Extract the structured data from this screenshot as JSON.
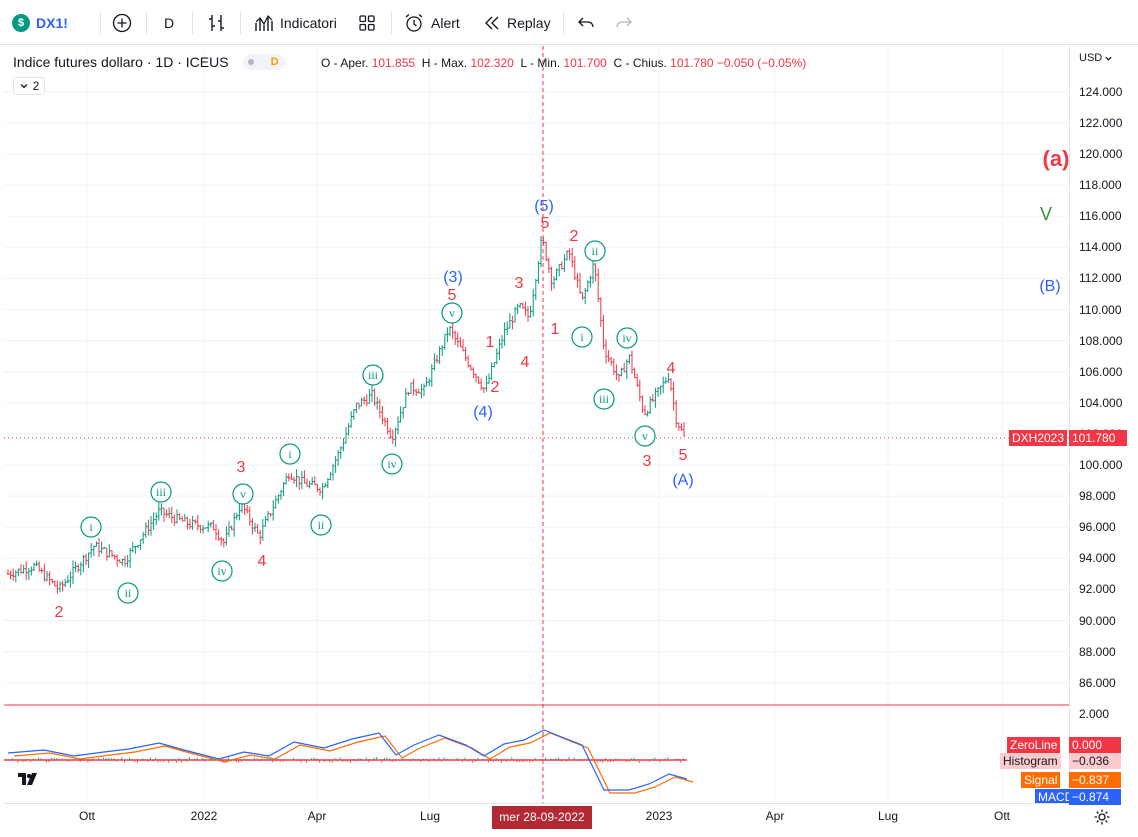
{
  "toolbar": {
    "symbol": "DX1!",
    "symbol_badge": "$",
    "interval": "D",
    "indicators_label": "Indicatori",
    "alert_label": "Alert",
    "replay_label": "Replay"
  },
  "legend": {
    "title": "Indice futures dollaro · 1D · ICEUS",
    "source_badge": "D",
    "o_label": "O - Aper.",
    "o_value": "101.855",
    "h_label": "H - Max.",
    "h_value": "102.320",
    "l_label": "L - Min.",
    "l_value": "101.700",
    "c_label": "C - Chius.",
    "c_value": "101.780",
    "change": "−0.050 (−0.05%)",
    "collapse_count": "2"
  },
  "price_scale": {
    "currency": "USD",
    "ticks": [
      "124.000",
      "122.000",
      "120.000",
      "118.000",
      "116.000",
      "114.000",
      "112.000",
      "110.000",
      "108.000",
      "106.000",
      "104.000",
      "102.000",
      "100.000",
      "98.000",
      "96.000",
      "94.000",
      "92.000",
      "90.000",
      "88.000",
      "86.000"
    ],
    "macd_ticks": [
      "2.000"
    ],
    "last_symbol": "DXH2023",
    "last_price": "101.780"
  },
  "indicator_labels": [
    {
      "name": "ZeroLine",
      "value": "0.000",
      "color": "#f23645"
    },
    {
      "name": "Histogram",
      "value": "−0.036",
      "color": "#fccbcd"
    },
    {
      "name": "Signal",
      "value": "−0.837",
      "color": "#ff6d00"
    },
    {
      "name": "MACD",
      "value": "−0.874",
      "color": "#2962ff"
    }
  ],
  "time_scale": {
    "ticks": [
      "Ott",
      "2022",
      "Apr",
      "Lug",
      "2023",
      "Apr",
      "Lug",
      "Ott"
    ],
    "crosshair_label": "mer 28-09-2022"
  },
  "wave_labels": {
    "a_big": "(a)",
    "v_big": "V",
    "b_big": "(B)",
    "a_paren": "(A)",
    "p5": "(5)",
    "p3": "(3)",
    "p4": "(4)",
    "n1": "1",
    "n2": "2",
    "n3": "3",
    "n4": "4",
    "n5": "5",
    "ri": "i",
    "rii": "ii",
    "riii": "iii",
    "riv": "iv",
    "rv": "v"
  },
  "colors": {
    "red": "#f23645",
    "blue": "#2962ff",
    "teal": "#089981",
    "green": "#388e3c",
    "macd": "#2962ff",
    "signal": "#ff6d00"
  }
}
